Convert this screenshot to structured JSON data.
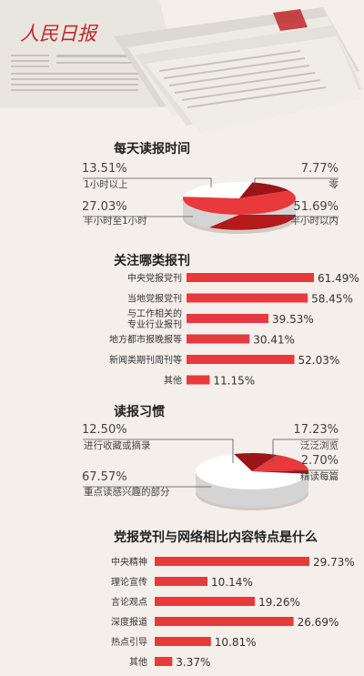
{
  "colors": {
    "red": "#e8393c",
    "dark_red": "#9a1418",
    "pie_white": "#ffffff",
    "pie_side_white": "#d4d4d4",
    "pie_side_red": "#b4191c",
    "bar": "#e8393c",
    "leader": "#555555",
    "background": "#f4efeb"
  },
  "header": {
    "image": "newspaper-stack-photo",
    "masthead": "人民日报"
  },
  "chart_data": [
    {
      "type": "pie",
      "title": "每天读报时间",
      "slices": [
        {
          "label": "半小时以内",
          "value": 51.69,
          "display": "51.69%"
        },
        {
          "label": "半小时至1小时",
          "value": 27.03,
          "display": "27.03%"
        },
        {
          "label": "1小时以上",
          "value": 13.51,
          "display": "13.51%"
        },
        {
          "label": "零",
          "value": 7.77,
          "display": "7.77%"
        }
      ]
    },
    {
      "type": "bar",
      "title": "关注哪类报刊",
      "categories": [
        "中央党报党刊",
        "当地党报党刊",
        "与工作相关的专业行业报刊",
        "地方都市报晚报等",
        "新闻类期刊周刊等",
        "其他"
      ],
      "category_lines": [
        [
          "中央党报党刊"
        ],
        [
          "当地党报党刊"
        ],
        [
          "与工作相关的",
          "专业行业报刊"
        ],
        [
          "地方都市报晚报等"
        ],
        [
          "新闻类期刊周刊等"
        ],
        [
          "其他"
        ]
      ],
      "values": [
        61.49,
        58.45,
        39.53,
        30.41,
        52.03,
        11.15
      ],
      "labels": [
        "61.49%",
        "58.45%",
        "39.53%",
        "30.41%",
        "52.03%",
        "11.15%"
      ]
    },
    {
      "type": "pie",
      "title": "读报习惯",
      "slices": [
        {
          "label": "重点读感兴趣的部分",
          "value": 67.57,
          "display": "67.57%"
        },
        {
          "label": "进行收藏或摘录",
          "value": 12.5,
          "display": "12.50%"
        },
        {
          "label": "泛泛浏览",
          "value": 17.23,
          "display": "17.23%"
        },
        {
          "label": "精读每篇",
          "value": 2.7,
          "display": "2.70%"
        }
      ]
    },
    {
      "type": "bar",
      "title": "党报党刊与网络相比内容特点是什么",
      "categories": [
        "中央精神",
        "理论宣传",
        "言论观点",
        "深度报道",
        "热点引导",
        "其他"
      ],
      "values": [
        29.73,
        10.14,
        19.26,
        26.69,
        10.81,
        3.37
      ],
      "labels": [
        "29.73%",
        "10.14%",
        "19.26%",
        "26.69%",
        "10.81%",
        "3.37%"
      ]
    }
  ]
}
